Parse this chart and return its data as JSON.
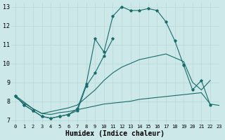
{
  "xlabel": "Humidex (Indice chaleur)",
  "bg_color": "#cce8e8",
  "line_color": "#1a6b6b",
  "grid_color": "#b8d8d8",
  "xlim": [
    -0.5,
    23
  ],
  "ylim": [
    6.8,
    13.2
  ],
  "xticks": [
    0,
    1,
    2,
    3,
    4,
    5,
    6,
    7,
    8,
    9,
    10,
    11,
    12,
    13,
    14,
    15,
    16,
    17,
    18,
    19,
    20,
    21,
    22,
    23
  ],
  "yticks": [
    7,
    8,
    9,
    10,
    11,
    12,
    13
  ],
  "line1_x": [
    0,
    1,
    2,
    3,
    4,
    5,
    6,
    7,
    8,
    9,
    10,
    11,
    12,
    13,
    14,
    15,
    16,
    17,
    18,
    19,
    20,
    21,
    22
  ],
  "line1_y": [
    8.3,
    7.8,
    7.5,
    7.2,
    7.1,
    7.2,
    7.3,
    7.6,
    8.9,
    11.3,
    10.6,
    12.5,
    13.0,
    12.8,
    12.8,
    12.9,
    12.8,
    12.2,
    11.2,
    9.9,
    8.6,
    9.1,
    7.8
  ],
  "line2_x": [
    0,
    1,
    2,
    3,
    4,
    5,
    6,
    7,
    8,
    9,
    10,
    11
  ],
  "line2_y": [
    8.3,
    7.8,
    7.5,
    7.2,
    7.1,
    7.2,
    7.3,
    7.5,
    8.8,
    9.5,
    10.4,
    11.3
  ],
  "line3_x": [
    0,
    1,
    2,
    3,
    4,
    5,
    6,
    7,
    8,
    9,
    10,
    11,
    12,
    13,
    14,
    15,
    16,
    17,
    18,
    19,
    20,
    21,
    22,
    23
  ],
  "line3_y": [
    8.2,
    7.9,
    7.6,
    7.35,
    7.3,
    7.4,
    7.45,
    7.55,
    7.65,
    7.75,
    7.85,
    7.9,
    7.95,
    8.0,
    8.1,
    8.15,
    8.2,
    8.25,
    8.3,
    8.35,
    8.4,
    8.45,
    7.85,
    7.78
  ],
  "line4_x": [
    0,
    2,
    3,
    4,
    5,
    6,
    7,
    8,
    9,
    10,
    11,
    12,
    13,
    14,
    15,
    16,
    17,
    18,
    19,
    20,
    21,
    22
  ],
  "line4_y": [
    8.3,
    7.6,
    7.35,
    7.45,
    7.55,
    7.65,
    7.8,
    8.2,
    8.6,
    9.1,
    9.5,
    9.8,
    10.0,
    10.2,
    10.3,
    10.4,
    10.5,
    10.3,
    10.1,
    9.0,
    8.6,
    9.1
  ]
}
